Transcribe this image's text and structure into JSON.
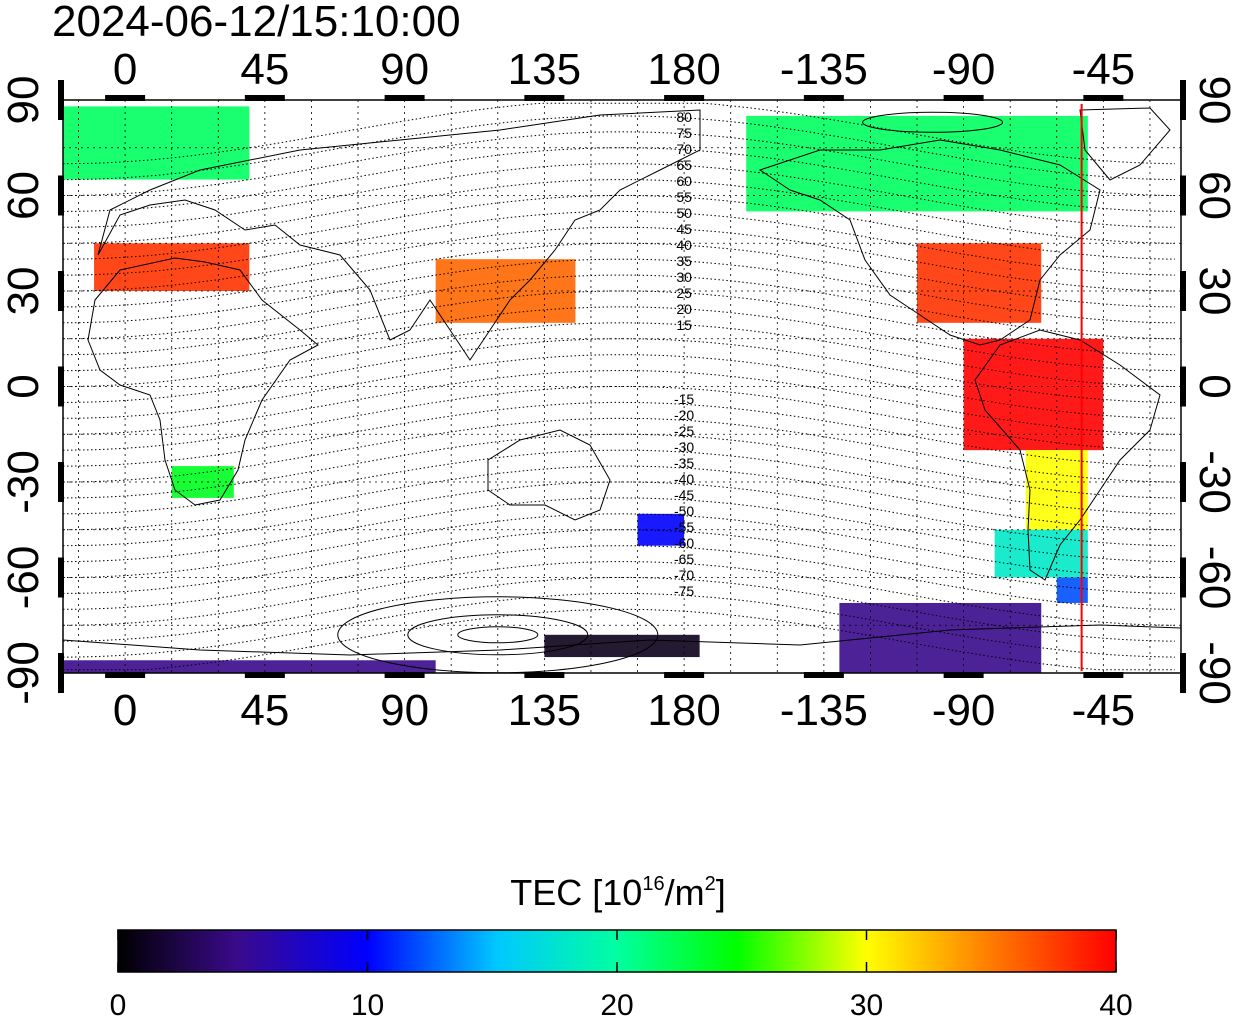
{
  "timestamp": "2024-06-12/15:10:00",
  "axes": {
    "lon_ticks": [
      "0",
      "45",
      "90",
      "135",
      "180",
      "-135",
      "-90",
      "-45"
    ],
    "lat_ticks": [
      "90",
      "60",
      "30",
      "0",
      "-30",
      "-60",
      "-90"
    ]
  },
  "magnetic_latitude_labels": {
    "north": [
      "80",
      "75",
      "70",
      "65",
      "60",
      "55",
      "50",
      "45",
      "40",
      "35",
      "30",
      "25",
      "20",
      "15"
    ],
    "south": [
      "-15",
      "-20",
      "-25",
      "-30",
      "-35",
      "-40",
      "-45",
      "-50",
      "-55",
      "-60",
      "-65",
      "-70",
      "-75"
    ]
  },
  "terminator_longitude": -52,
  "colorbar": {
    "title_prefix": "TEC  [10",
    "title_exp1": "16",
    "title_mid": "/m",
    "title_exp2": "2",
    "title_suffix": "]",
    "ticks": [
      "0",
      "10",
      "20",
      "30",
      "40"
    ],
    "min": 0,
    "max": 40
  },
  "colors": {
    "tec_low": "#000000",
    "tec_mid_low": "#3a0a8c",
    "tec_blue": "#0000ff",
    "tec_cyan": "#00ffff",
    "tec_green": "#00ff00",
    "tec_yellow": "#ffff00",
    "tec_high": "#ff0000",
    "terminator": "#ff0000"
  },
  "chart_data": {
    "type": "heatmap",
    "title": "2024-06-12/15:10:00",
    "xlabel": "",
    "ylabel": "",
    "xlim": [
      -20,
      340
    ],
    "ylim": [
      -90,
      90
    ],
    "colorbar_range": [
      0,
      40
    ],
    "regions": [
      {
        "lon": [
          -105,
          -65
        ],
        "lat": [
          20,
          45
        ],
        "tec": 38
      },
      {
        "lon": [
          -90,
          -45
        ],
        "lat": [
          -20,
          15
        ],
        "tec": 40
      },
      {
        "lon": [
          -70,
          -50
        ],
        "lat": [
          -45,
          -20
        ],
        "tec": 30
      },
      {
        "lon": [
          -80,
          -50
        ],
        "lat": [
          -60,
          -45
        ],
        "tec": 18
      },
      {
        "lon": [
          -60,
          -50
        ],
        "lat": [
          -68,
          -60
        ],
        "tec": 12
      },
      {
        "lon": [
          -160,
          -50
        ],
        "lat": [
          55,
          85
        ],
        "tec": 22
      },
      {
        "lon": [
          -130,
          -65
        ],
        "lat": [
          -90,
          -68
        ],
        "tec": 5
      },
      {
        "lon": [
          -10,
          40
        ],
        "lat": [
          30,
          45
        ],
        "tec": 38
      },
      {
        "lon": [
          -20,
          40
        ],
        "lat": [
          65,
          88
        ],
        "tec": 22
      },
      {
        "lon": [
          15,
          35
        ],
        "lat": [
          -35,
          -25
        ],
        "tec": 24
      },
      {
        "lon": [
          100,
          145
        ],
        "lat": [
          20,
          40
        ],
        "tec": 36
      },
      {
        "lon": [
          165,
          180
        ],
        "lat": [
          -50,
          -40
        ],
        "tec": 10
      },
      {
        "lon": [
          135,
          185
        ],
        "lat": [
          -85,
          -78
        ],
        "tec": 1
      },
      {
        "lon": [
          -20,
          100
        ],
        "lat": [
          -90,
          -86
        ],
        "tec": 5
      }
    ]
  }
}
